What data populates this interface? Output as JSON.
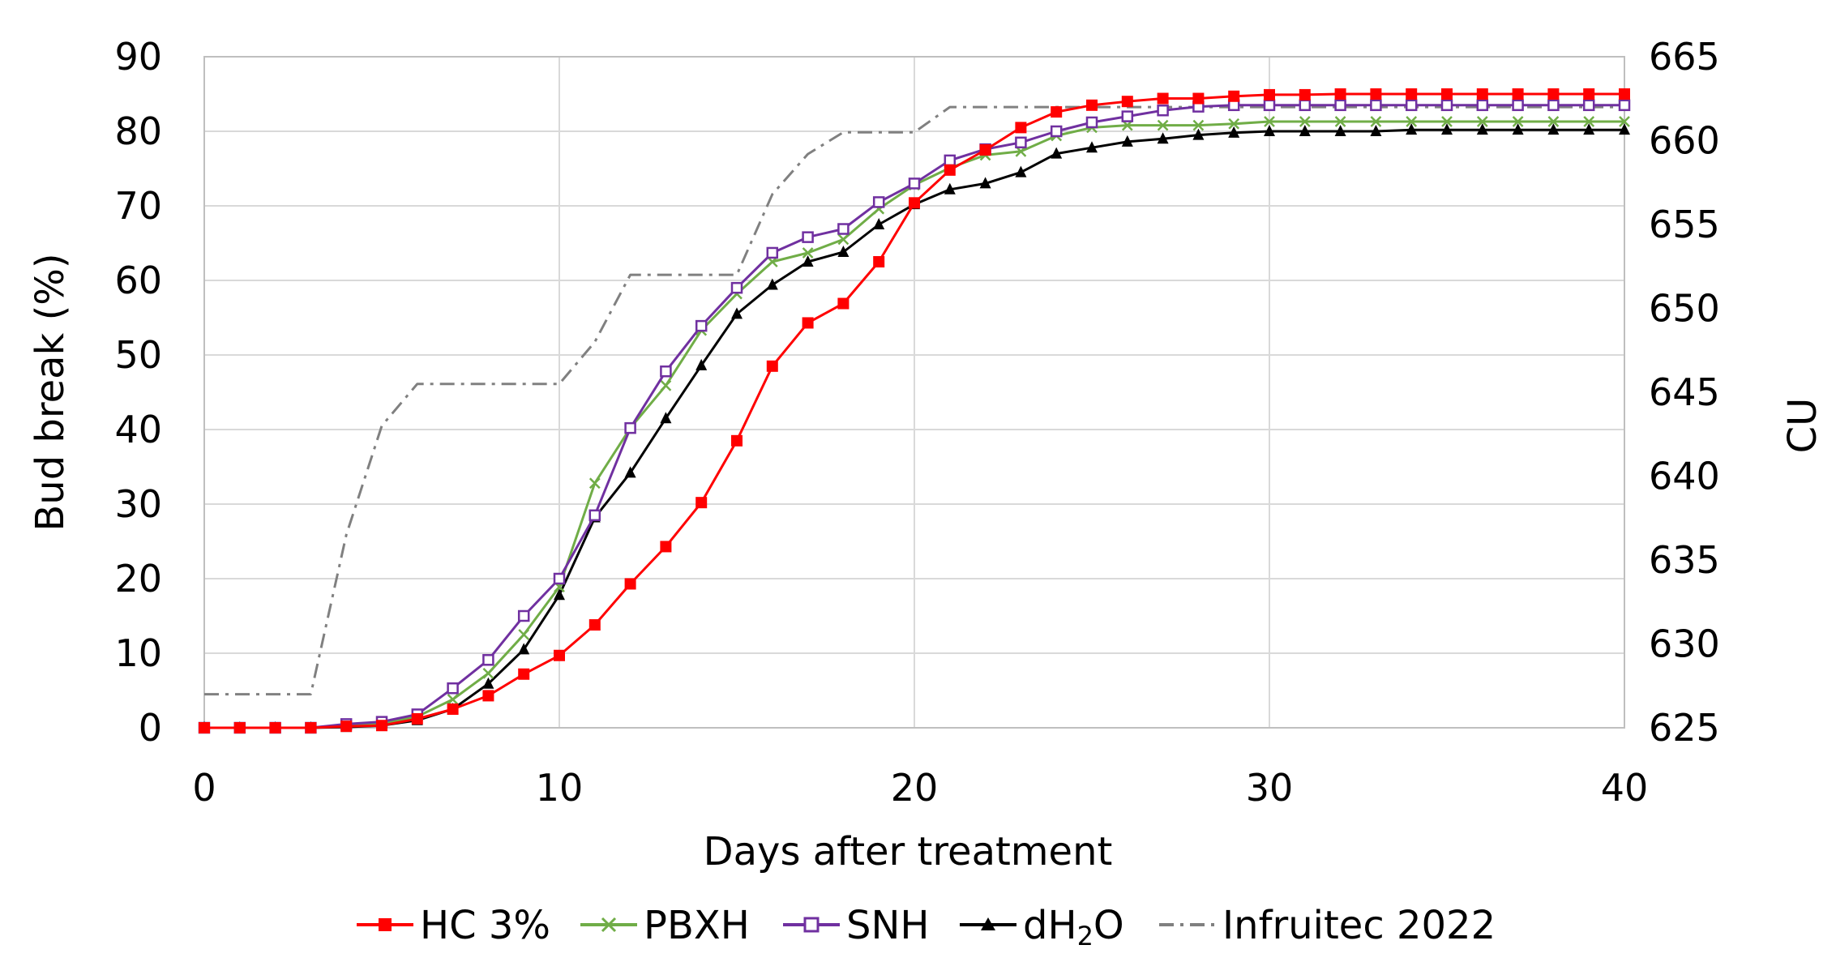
{
  "chart_data": {
    "type": "line",
    "title": "",
    "xlabel": "Days after treatment",
    "ylabel": "Bud break (%)",
    "y2label": "CU",
    "xlim": [
      0,
      40
    ],
    "ylim": [
      0,
      90
    ],
    "y2lim": [
      625,
      665
    ],
    "xticks": [
      "0",
      "10",
      "20",
      "30",
      "40"
    ],
    "yticks": [
      "0",
      "10",
      "20",
      "30",
      "40",
      "50",
      "60",
      "70",
      "80",
      "90"
    ],
    "y2ticks": [
      "625",
      "630",
      "635",
      "640",
      "645",
      "650",
      "655",
      "660",
      "665"
    ],
    "grid": true,
    "legend_position": "bottom",
    "x": [
      0,
      1,
      2,
      3,
      4,
      5,
      6,
      7,
      8,
      9,
      10,
      11,
      12,
      13,
      14,
      15,
      16,
      17,
      18,
      19,
      20,
      21,
      22,
      23,
      24,
      25,
      26,
      27,
      28,
      29,
      30,
      31,
      32,
      33,
      34,
      35,
      36,
      37,
      38,
      39,
      40
    ],
    "series": [
      {
        "name": "HC 3%",
        "color": "#ff0000",
        "marker": "square",
        "axis": "left",
        "values": [
          0,
          0,
          0,
          0,
          0.2,
          0.3,
          1.2,
          2.5,
          4.3,
          7.2,
          9.7,
          13.8,
          19.3,
          24.3,
          30.2,
          38.5,
          48.5,
          54.3,
          56.9,
          62.5,
          70.4,
          74.8,
          77.5,
          80.5,
          82.6,
          83.5,
          84,
          84.4,
          84.4,
          84.7,
          84.9,
          84.9,
          85,
          85,
          85,
          85,
          85,
          85,
          85,
          85,
          85
        ]
      },
      {
        "name": "PBXH",
        "color": "#70ad47",
        "marker": "x",
        "axis": "left",
        "values": [
          0,
          0,
          0,
          0,
          0.3,
          0.6,
          1.5,
          3.8,
          7.3,
          12.5,
          18.9,
          32.8,
          40.2,
          45.9,
          53.3,
          58.2,
          62.5,
          63.7,
          65.5,
          69.6,
          72.8,
          75.1,
          76.8,
          77.3,
          79.4,
          80.5,
          80.8,
          80.8,
          80.8,
          81,
          81.3,
          81.3,
          81.3,
          81.3,
          81.3,
          81.3,
          81.3,
          81.3,
          81.3,
          81.3,
          81.3
        ]
      },
      {
        "name": "SNH",
        "color": "#7030a0",
        "marker": "open-square",
        "axis": "left",
        "values": [
          0,
          0,
          0,
          0,
          0.5,
          0.8,
          1.8,
          5.3,
          9.1,
          15,
          20,
          28.5,
          40.2,
          47.8,
          53.9,
          59,
          63.7,
          65.8,
          66.9,
          70.5,
          73,
          76.1,
          77.6,
          78.5,
          80,
          81.2,
          82,
          82.8,
          83.3,
          83.5,
          83.5,
          83.5,
          83.5,
          83.5,
          83.5,
          83.5,
          83.5,
          83.5,
          83.5,
          83.5,
          83.5
        ]
      },
      {
        "name": "dH2O",
        "color": "#000000",
        "marker": "triangle",
        "axis": "left",
        "values": [
          0,
          0,
          0,
          0,
          0.1,
          0.3,
          1,
          2.5,
          5.9,
          10.5,
          17.8,
          28.2,
          34.2,
          41.5,
          48.6,
          55.5,
          59.4,
          62.5,
          63.8,
          67.5,
          70.2,
          72.2,
          73,
          74.5,
          77,
          77.8,
          78.6,
          79,
          79.5,
          79.8,
          80,
          80,
          80,
          80,
          80.2,
          80.2,
          80.2,
          80.2,
          80.2,
          80.2,
          80.2
        ]
      },
      {
        "name": "Infruitec 2022",
        "color": "#808080",
        "marker": "none",
        "dash": "dash-dot",
        "axis": "right",
        "values": [
          627,
          627,
          627,
          627,
          636.5,
          643,
          645.5,
          645.5,
          645.5,
          645.5,
          645.5,
          648,
          652,
          652,
          652,
          652,
          656.8,
          659.2,
          660.5,
          660.5,
          660.5,
          662,
          662,
          662,
          662,
          662,
          662,
          662,
          662,
          662,
          662,
          662,
          662,
          662,
          662,
          662,
          662,
          662,
          662,
          662,
          662
        ]
      }
    ],
    "legend": {
      "items": [
        "HC 3%",
        "PBXH",
        "SNH",
        "dH",
        "2",
        "O",
        "Infruitec 2022"
      ]
    }
  }
}
